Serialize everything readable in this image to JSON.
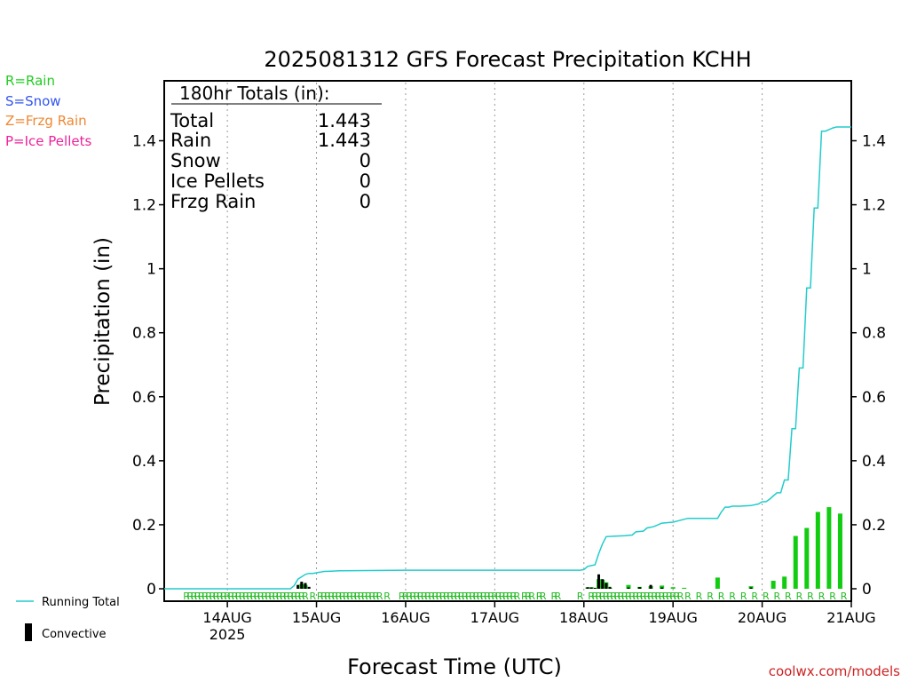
{
  "chart_data": {
    "type": "bar",
    "title": "2025081312 GFS Forecast Precipitation KCHH",
    "xlabel": "Forecast Time (UTC)",
    "ylabel": "Precipitation (in)",
    "credit": "coolwx.com/models",
    "xlim": [
      -5,
      180
    ],
    "ylim": [
      0,
      1.5
    ],
    "y_ticks": [
      0,
      0.2,
      0.4,
      0.6,
      0.8,
      1,
      1.2,
      1.4
    ],
    "y_tick_labels": [
      "0",
      "0.2",
      "0.4",
      "0.6",
      "0.8",
      "1",
      "1.2",
      "1.4"
    ],
    "x_ticks": [
      {
        "x": 12,
        "label": "14AUG",
        "sub": "2025"
      },
      {
        "x": 36,
        "label": "15AUG",
        "sub": ""
      },
      {
        "x": 60,
        "label": "16AUG",
        "sub": ""
      },
      {
        "x": 84,
        "label": "17AUG",
        "sub": ""
      },
      {
        "x": 108,
        "label": "18AUG",
        "sub": ""
      },
      {
        "x": 132,
        "label": "19AUG",
        "sub": ""
      },
      {
        "x": 156,
        "label": "20AUG",
        "sub": ""
      },
      {
        "x": 180,
        "label": "21AUG",
        "sub": ""
      }
    ],
    "grid": "vertical dotted at day boundaries",
    "legend_types": [
      {
        "code": "R=Rain",
        "color": "#22cc22"
      },
      {
        "code": "S=Snow",
        "color": "#3355ee"
      },
      {
        "code": "Z=Frzg Rain",
        "color": "#ee8833"
      },
      {
        "code": "P=Ice Pellets",
        "color": "#ee2299"
      }
    ],
    "legend_series": [
      {
        "name": "Running Total",
        "color": "#22cccc"
      },
      {
        "name": "Convective",
        "color": "#000000"
      }
    ],
    "totals": {
      "header": "180hr Totals (in):",
      "rows": [
        {
          "label": "Total",
          "value": "1.443"
        },
        {
          "label": "Rain",
          "value": "1.443"
        },
        {
          "label": "Snow",
          "value": "0"
        },
        {
          "label": "Ice Pellets",
          "value": "0"
        },
        {
          "label": "Frzg Rain",
          "value": "0"
        }
      ]
    },
    "precip_type_code": "R",
    "precip_type_hours": [
      1,
      2,
      3,
      4,
      5,
      6,
      7,
      8,
      9,
      10,
      11,
      12,
      13,
      14,
      15,
      16,
      17,
      18,
      19,
      20,
      21,
      22,
      23,
      24,
      25,
      26,
      27,
      28,
      29,
      30,
      31,
      32,
      33,
      35,
      37,
      38,
      39,
      40,
      41,
      42,
      43,
      44,
      45,
      46,
      47,
      48,
      49,
      50,
      51,
      52,
      53,
      55,
      59,
      60,
      61,
      62,
      63,
      64,
      65,
      66,
      67,
      68,
      69,
      70,
      71,
      72,
      73,
      74,
      75,
      76,
      77,
      78,
      79,
      80,
      81,
      82,
      83,
      84,
      85,
      86,
      87,
      88,
      89,
      90,
      92,
      93,
      94,
      96,
      97,
      100,
      101,
      107,
      110,
      111,
      112,
      113,
      114,
      115,
      116,
      117,
      118,
      119,
      120,
      121,
      122,
      123,
      124,
      125,
      126,
      127,
      128,
      129,
      130,
      131,
      132,
      133,
      134,
      136,
      139,
      142,
      145,
      148,
      151,
      154,
      157,
      160,
      163,
      166,
      169,
      172,
      175,
      178
    ],
    "running_total": {
      "x": [
        -5,
        29,
        30,
        31,
        33,
        34,
        35,
        36,
        37,
        38,
        40,
        42,
        50,
        60,
        80,
        100,
        107,
        108,
        109,
        111,
        112,
        113,
        114,
        116,
        119,
        121,
        122,
        124,
        125,
        126,
        127,
        129,
        132,
        136,
        144,
        145,
        146,
        147,
        148,
        150,
        153,
        155,
        156,
        157,
        158,
        159,
        160,
        161,
        162,
        163,
        164,
        165,
        166,
        167,
        168,
        169,
        170,
        171,
        172,
        173,
        174,
        175,
        176,
        177,
        178,
        179,
        180
      ],
      "y": [
        0,
        0,
        0.01,
        0.03,
        0.045,
        0.048,
        0.048,
        0.05,
        0.052,
        0.054,
        0.055,
        0.056,
        0.057,
        0.058,
        0.058,
        0.058,
        0.058,
        0.06,
        0.07,
        0.075,
        0.11,
        0.14,
        0.163,
        0.164,
        0.166,
        0.168,
        0.178,
        0.18,
        0.19,
        0.192,
        0.195,
        0.205,
        0.208,
        0.22,
        0.22,
        0.24,
        0.255,
        0.255,
        0.258,
        0.258,
        0.26,
        0.265,
        0.272,
        0.272,
        0.28,
        0.29,
        0.3,
        0.3,
        0.34,
        0.34,
        0.5,
        0.5,
        0.69,
        0.69,
        0.94,
        0.94,
        1.19,
        1.19,
        1.43,
        1.43,
        1.435,
        1.44,
        1.443,
        1.443,
        1.443,
        1.443,
        1.443
      ]
    },
    "rain_bars": [
      {
        "x": 32,
        "v": 0.015
      },
      {
        "x": 33,
        "v": 0.012
      },
      {
        "x": 109,
        "v": 0.004
      },
      {
        "x": 110,
        "v": 0.005
      },
      {
        "x": 112,
        "v": 0.03
      },
      {
        "x": 113,
        "v": 0.028
      },
      {
        "x": 114,
        "v": 0.02
      },
      {
        "x": 115,
        "v": 0.003
      },
      {
        "x": 120,
        "v": 0.012
      },
      {
        "x": 123,
        "v": 0.006
      },
      {
        "x": 126,
        "v": 0.008
      },
      {
        "x": 129,
        "v": 0.01
      },
      {
        "x": 132,
        "v": 0.005
      },
      {
        "x": 135,
        "v": 0.003
      },
      {
        "x": 144,
        "v": 0.035
      },
      {
        "x": 153,
        "v": 0.008
      },
      {
        "x": 159,
        "v": 0.025
      },
      {
        "x": 162,
        "v": 0.038
      },
      {
        "x": 165,
        "v": 0.165
      },
      {
        "x": 168,
        "v": 0.19
      },
      {
        "x": 171,
        "v": 0.24
      },
      {
        "x": 174,
        "v": 0.255
      },
      {
        "x": 177,
        "v": 0.235
      }
    ],
    "convective_bars": [
      {
        "x": 31,
        "v": 0.012
      },
      {
        "x": 32,
        "v": 0.022
      },
      {
        "x": 33,
        "v": 0.018
      },
      {
        "x": 34,
        "v": 0.006
      },
      {
        "x": 109,
        "v": 0.005
      },
      {
        "x": 110,
        "v": 0.004
      },
      {
        "x": 111,
        "v": 0.003
      },
      {
        "x": 112,
        "v": 0.045
      },
      {
        "x": 113,
        "v": 0.03
      },
      {
        "x": 114,
        "v": 0.018
      },
      {
        "x": 115,
        "v": 0.006
      },
      {
        "x": 120,
        "v": 0.004
      },
      {
        "x": 123,
        "v": 0.005
      },
      {
        "x": 126,
        "v": 0.012
      },
      {
        "x": 129,
        "v": 0.004
      },
      {
        "x": 153,
        "v": 0.004
      }
    ]
  }
}
